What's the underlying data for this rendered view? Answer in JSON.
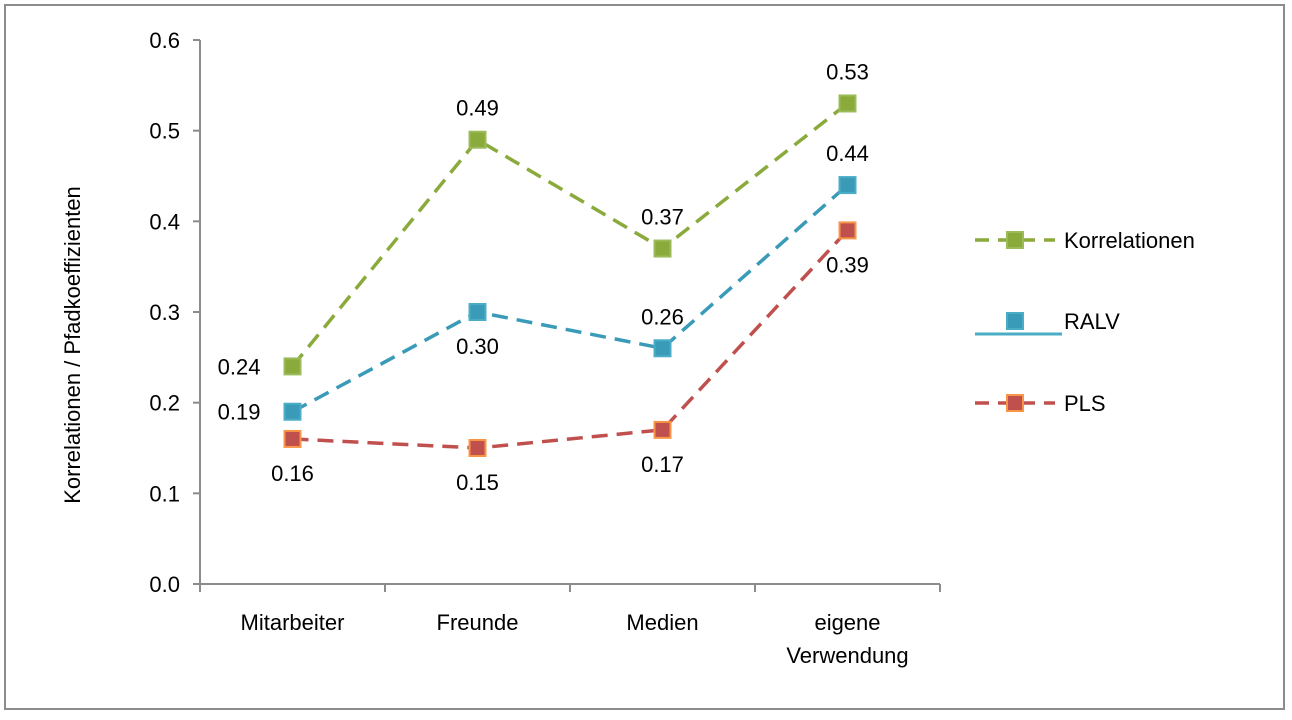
{
  "chart_data": {
    "type": "line",
    "title": "",
    "xlabel": "",
    "ylabel": "Korrelationen  / Pfadkoeffizienten",
    "categories": [
      [
        "Mitarbeiter"
      ],
      [
        "Freunde"
      ],
      [
        "Medien"
      ],
      [
        "eigene",
        "Verwendung"
      ]
    ],
    "ylim": [
      0,
      0.6
    ],
    "yticks": [
      "0.0",
      "0.1",
      "0.2",
      "0.3",
      "0.4",
      "0.5",
      "0.6"
    ],
    "grid": false,
    "legend_position": "right",
    "series": [
      {
        "name": "Korrelationen",
        "values": [
          0.24,
          0.49,
          0.37,
          0.53
        ],
        "labels": [
          "0.24",
          "0.49",
          "0.37",
          "0.53"
        ],
        "color": "#8aaa3c",
        "marker_edge": "#9bbb59",
        "dash": true,
        "label_pos": [
          "left",
          "above",
          "above",
          "above"
        ]
      },
      {
        "name": "RALV",
        "values": [
          0.19,
          0.3,
          0.26,
          0.44
        ],
        "labels": [
          "0.19",
          "0.30",
          "0.26",
          "0.44"
        ],
        "color": "#3a9bb8",
        "marker_edge": "#4bacc6",
        "dash": true,
        "label_pos": [
          "left",
          "below",
          "above",
          "above"
        ]
      },
      {
        "name": "PLS",
        "values": [
          0.16,
          0.15,
          0.17,
          0.39
        ],
        "labels": [
          "0.16",
          "0.15",
          "0.17",
          "0.39"
        ],
        "color": "#c0504d",
        "marker_edge": "#f79646",
        "dash": true,
        "label_pos": [
          "below",
          "below",
          "below",
          "below"
        ]
      }
    ]
  }
}
